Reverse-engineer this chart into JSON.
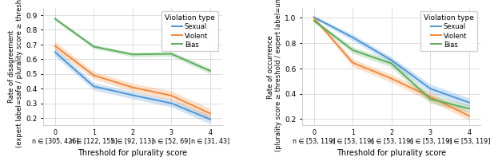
{
  "left": {
    "ylabel": "Rate of disagreement\n(expert label=safe / plurality score ≥ threshold)",
    "xlabel": "Threshold for plurality score",
    "xlim": [
      -0.3,
      4.3
    ],
    "ylim": [
      0.15,
      0.95
    ],
    "yticks": [
      0.2,
      0.3,
      0.4,
      0.5,
      0.6,
      0.7,
      0.8,
      0.9
    ],
    "xticks": [
      0,
      1,
      2,
      3,
      4
    ],
    "xtick_top": [
      "0",
      "1",
      "2",
      "3",
      "4"
    ],
    "xtick_bot": [
      "n ∈ [305, 426]",
      "n ∈ [122, 155]",
      "n ∈ [92, 113]",
      "n ∈ [52, 69]",
      "n ∈ [31, 43]"
    ],
    "sexual_mean": [
      0.648,
      0.415,
      0.355,
      0.3,
      0.19
    ],
    "sexual_lo": [
      0.62,
      0.39,
      0.33,
      0.275,
      0.16
    ],
    "sexual_hi": [
      0.676,
      0.44,
      0.38,
      0.325,
      0.22
    ],
    "violent_mean": [
      0.69,
      0.49,
      0.408,
      0.352,
      0.23
    ],
    "violent_lo": [
      0.66,
      0.465,
      0.38,
      0.32,
      0.195
    ],
    "violent_hi": [
      0.72,
      0.515,
      0.436,
      0.384,
      0.265
    ],
    "bias_mean": [
      0.875,
      0.685,
      0.632,
      0.636,
      0.52
    ],
    "bias_lo": [
      0.862,
      0.672,
      0.617,
      0.62,
      0.5
    ],
    "bias_hi": [
      0.888,
      0.698,
      0.647,
      0.652,
      0.54
    ]
  },
  "right": {
    "ylabel": "Rate of occurrence\n(plurality score ≥ threshold / expert label=unsafe)",
    "xlabel": "Threshold for plurality score",
    "xlim": [
      -0.3,
      4.3
    ],
    "ylim": [
      0.15,
      1.08
    ],
    "yticks": [
      0.2,
      0.4,
      0.6,
      0.8,
      1.0
    ],
    "xticks": [
      0,
      1,
      2,
      3,
      4
    ],
    "xtick_top": [
      "0",
      "1",
      "2",
      "3",
      "4"
    ],
    "xtick_bot": [
      "n ∈ [53, 119]",
      "n ∈ [53, 119]",
      "n ∈ [53, 119]",
      "n ∈ [53, 119]",
      "n ∈ [53, 119]"
    ],
    "sexual_mean": [
      1.005,
      0.845,
      0.665,
      0.44,
      0.33
    ],
    "sexual_lo": [
      0.993,
      0.82,
      0.64,
      0.405,
      0.295
    ],
    "sexual_hi": [
      1.017,
      0.87,
      0.69,
      0.475,
      0.365
    ],
    "violent_mean": [
      1.0,
      0.645,
      0.52,
      0.375,
      0.225
    ],
    "violent_lo": [
      0.988,
      0.615,
      0.488,
      0.34,
      0.19
    ],
    "violent_hi": [
      1.012,
      0.675,
      0.552,
      0.41,
      0.26
    ],
    "bias_mean": [
      0.978,
      0.745,
      0.638,
      0.358,
      0.282
    ],
    "bias_lo": [
      0.962,
      0.72,
      0.61,
      0.325,
      0.252
    ],
    "bias_hi": [
      0.994,
      0.77,
      0.666,
      0.391,
      0.312
    ]
  },
  "colors": {
    "sexual": "#4c96d7",
    "violent": "#f4893a",
    "bias": "#5cad5c"
  },
  "legend_title": "Violation type",
  "legend_labels": [
    "Sexual",
    "Violent",
    "Bias"
  ]
}
